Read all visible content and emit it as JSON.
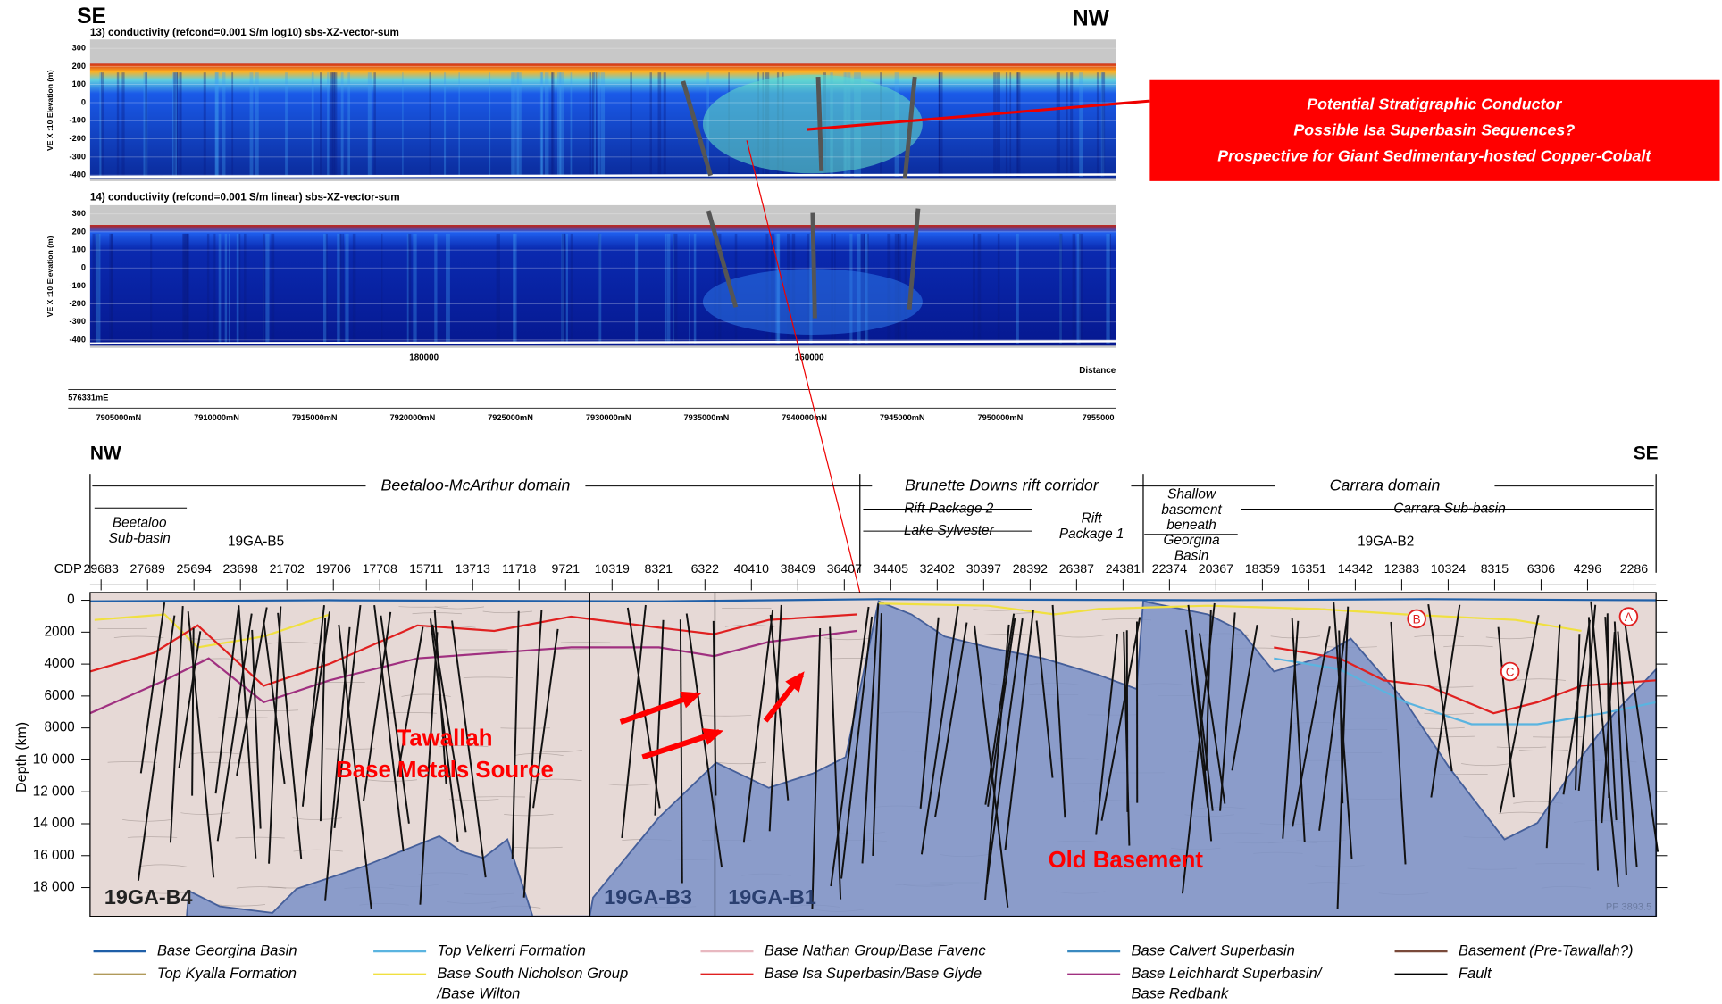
{
  "top": {
    "left_dir": "SE",
    "right_dir": "NW",
    "panel_titles": [
      "13)  conductivity (refcond=0.001 S/m log10) sbs-XZ-vector-sum",
      "14)  conductivity (refcond=0.001 S/m linear) sbs-XZ-vector-sum"
    ],
    "y_label": "VE X :10 Elevation (m)",
    "y_ticks": [
      "300",
      "200",
      "100",
      "0",
      "-100",
      "-200",
      "-300",
      "-400"
    ],
    "distance_ticks": [
      "180000",
      "160000"
    ],
    "distance_label": "Distance",
    "easting": "576331mE",
    "northing_ticks": [
      "7905000mN",
      "7910000mN",
      "7915000mN",
      "7920000mN",
      "7925000mN",
      "7930000mN",
      "7935000mN",
      "7940000mN",
      "7945000mN",
      "7950000mN",
      "7955000"
    ]
  },
  "callout": [
    "Potential Stratigraphic Conductor",
    "Possible Isa Superbasin Sequences?",
    "Prospective for Giant Sedimentary-hosted Copper-Cobalt"
  ],
  "section": {
    "left_dir": "NW",
    "right_dir": "SE",
    "domains": [
      "Beetaloo-McArthur domain",
      "Brunette Downs rift corridor",
      "Carrara domain"
    ],
    "subdomains": [
      {
        "lines": [
          "Beetaloo",
          "Sub-basin"
        ]
      },
      {
        "lines": [
          "Rift Package 2"
        ]
      },
      {
        "lines": [
          "Lake Sylvester"
        ]
      },
      {
        "lines": [
          "Rift",
          "Package 1"
        ]
      },
      {
        "lines": [
          "Shallow",
          "basement",
          "beneath"
        ]
      },
      {
        "lines": [
          "Georgina",
          "Basin"
        ]
      },
      {
        "lines": [
          "Carrara Sub-basin"
        ]
      }
    ],
    "wells": [
      "19GA-B5",
      "19GA-B2"
    ],
    "cdp_label": "CDP",
    "cdp_ticks": [
      "29683",
      "27689",
      "25694",
      "23698",
      "21702",
      "19706",
      "17708",
      "15711",
      "13713",
      "11718",
      "9721",
      "10319",
      "8321",
      "6322",
      "40410",
      "38409",
      "36407",
      "34405",
      "32402",
      "30397",
      "28392",
      "26387",
      "24381",
      "22374",
      "20367",
      "18359",
      "16351",
      "14342",
      "12383",
      "10324",
      "8315",
      "6306",
      "4296",
      "2286"
    ],
    "depth_label": "Depth (km)",
    "depth_ticks": [
      "0",
      "2000",
      "4000",
      "6000",
      "8000",
      "10 000",
      "12 000",
      "14 000",
      "16 000",
      "18 000"
    ],
    "annotations": [
      "Tawallah",
      "Base Metals Source",
      "Old Basement"
    ],
    "line_names": [
      "19GA-B4",
      "19GA-B3",
      "19GA-B1"
    ],
    "circles": [
      "A",
      "B",
      "C"
    ],
    "plate": "PP 3893.5"
  },
  "legend": [
    {
      "lines": [
        "Base Georgina Basin"
      ],
      "color": "#1f5fa8"
    },
    {
      "lines": [
        "Top Kyalla Formation"
      ],
      "color": "#b09a5a"
    },
    {
      "lines": [
        "Top Velkerri Formation"
      ],
      "color": "#5ab4e0"
    },
    {
      "lines": [
        "Base South Nicholson Group",
        "/Base Wilton"
      ],
      "color": "#f0e040"
    },
    {
      "lines": [
        "Base Nathan Group/Base Favenc"
      ],
      "color": "#e8b8c0"
    },
    {
      "lines": [
        "Base Isa Superbasin/Base Glyde"
      ],
      "color": "#e02020"
    },
    {
      "lines": [
        "Base Calvert Superbasin"
      ],
      "color": "#3a8ac0"
    },
    {
      "lines": [
        "Base Leichhardt Superbasin/",
        "Base Redbank"
      ],
      "color": "#a03080"
    },
    {
      "lines": [
        "Basement (Pre-Tawallah?)"
      ],
      "color": "#7a4a3a"
    },
    {
      "lines": [
        "Fault"
      ],
      "color": "#000000"
    }
  ]
}
